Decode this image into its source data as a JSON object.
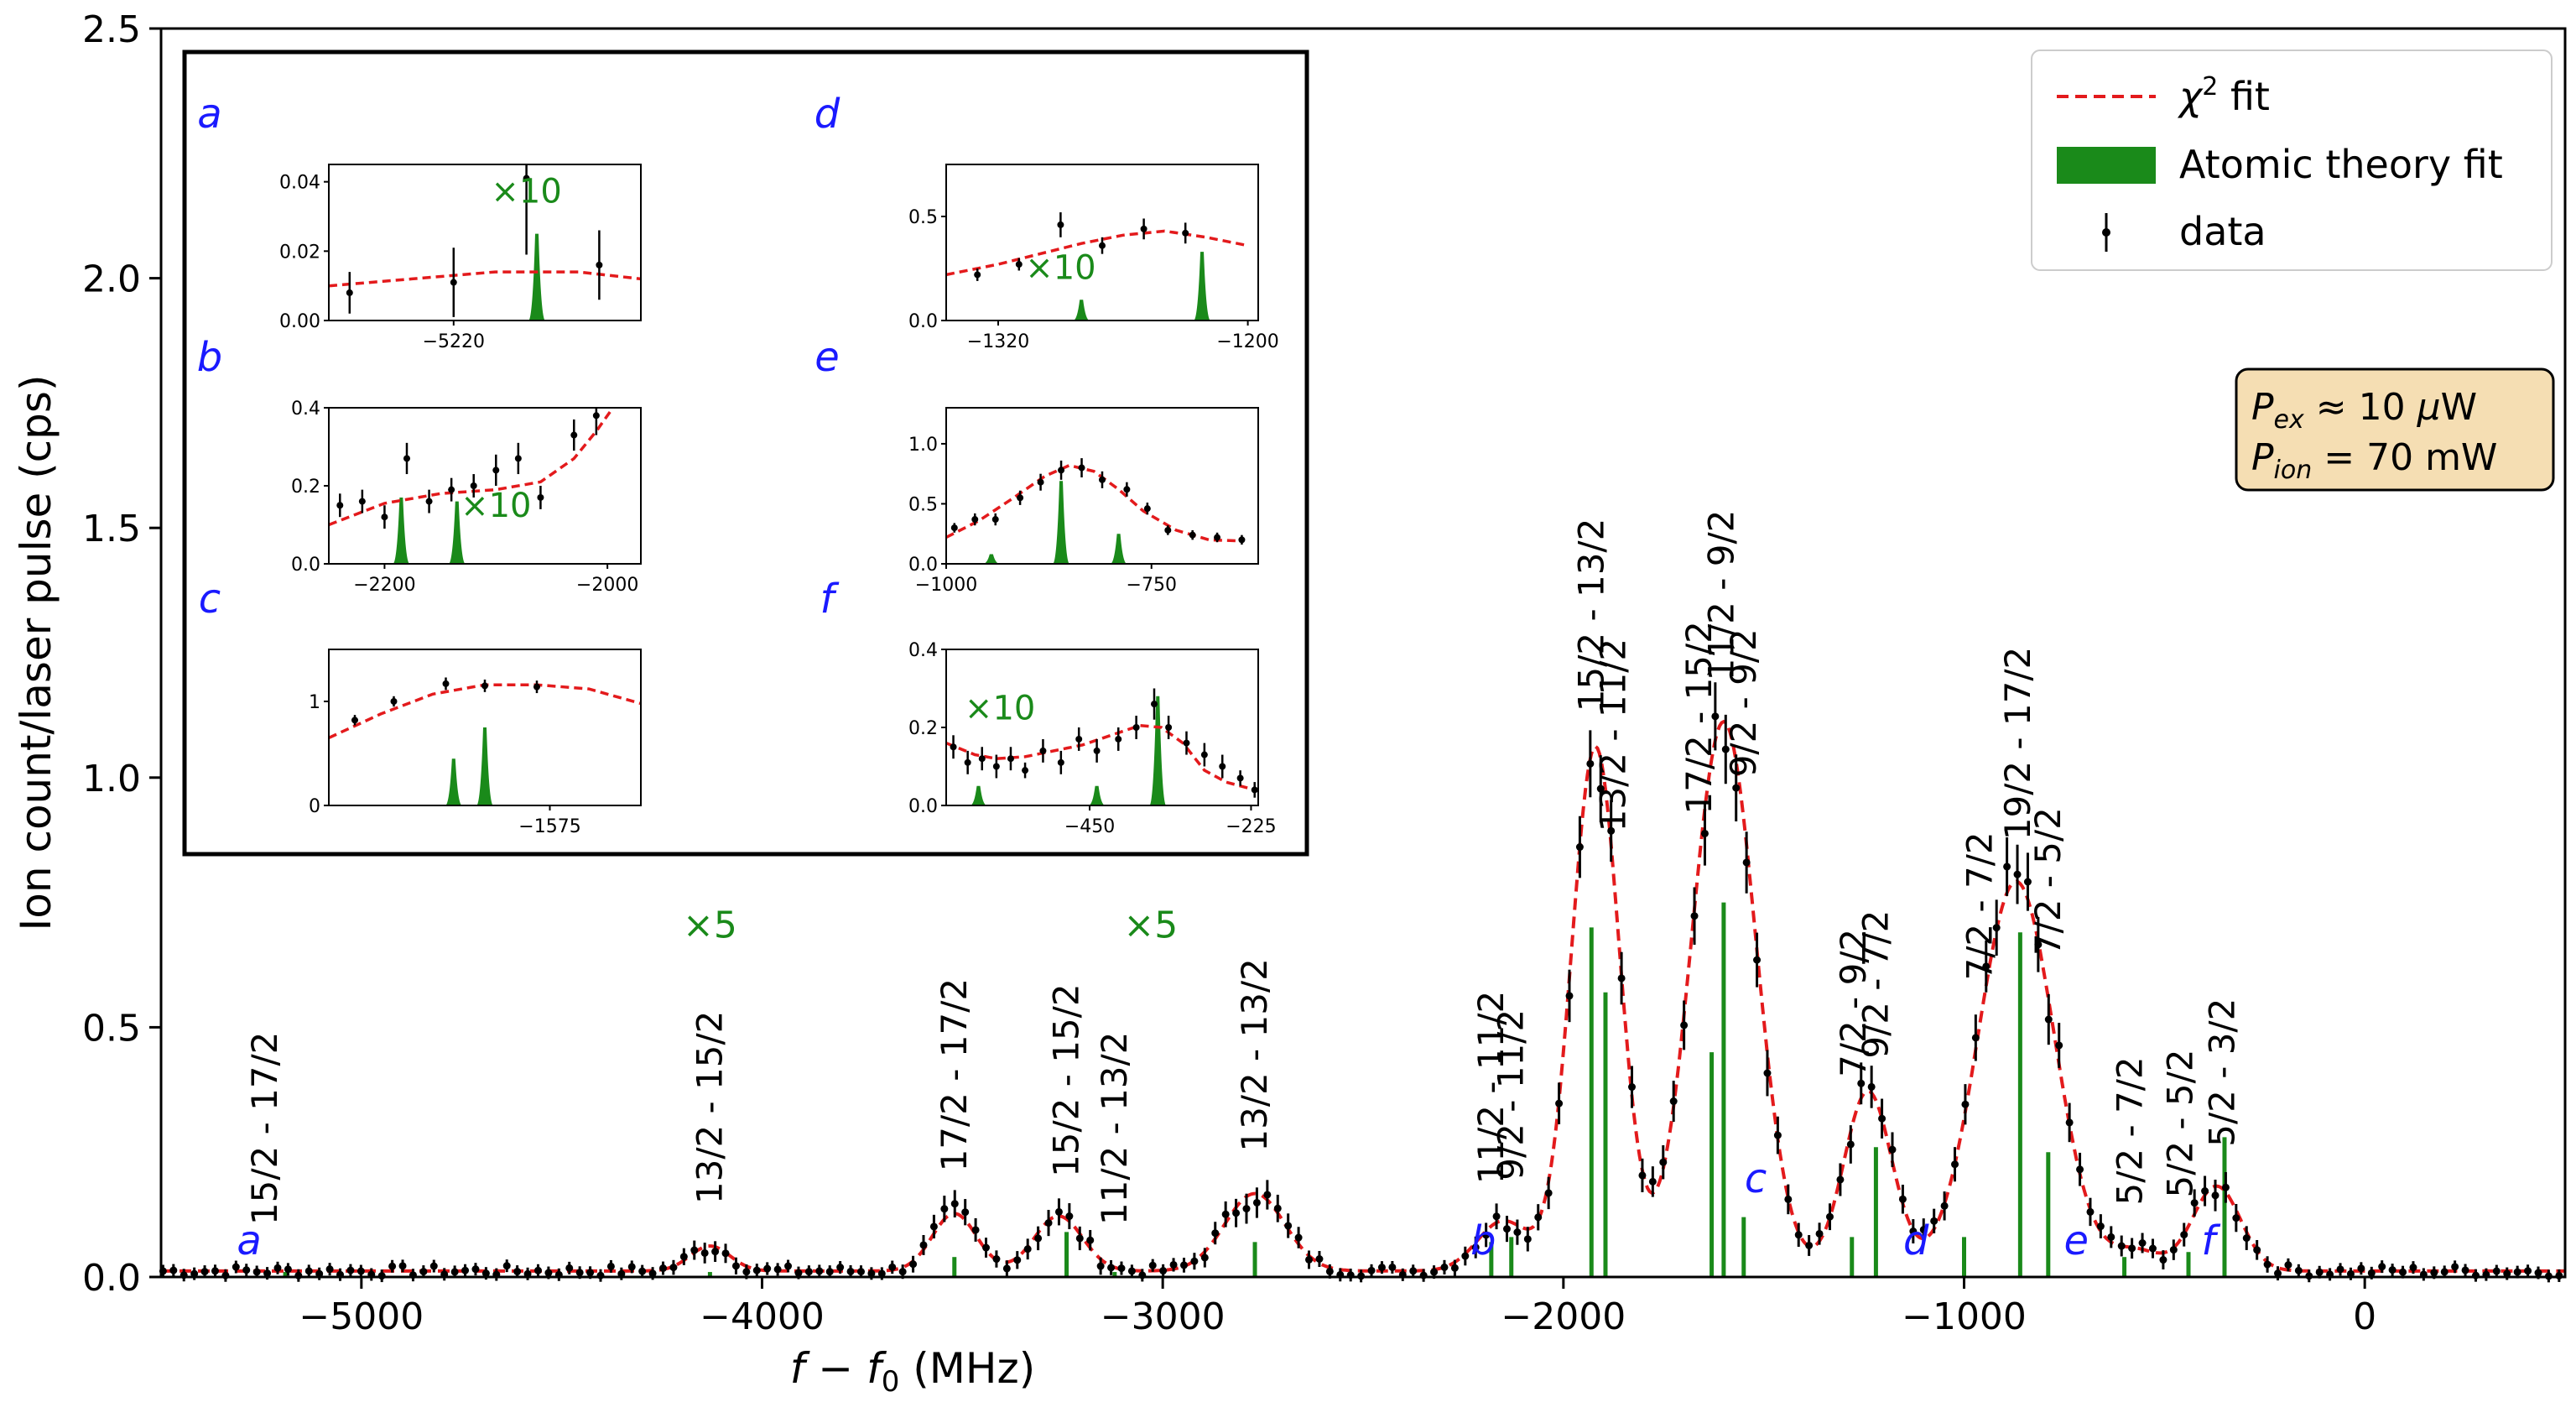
{
  "chart_data": {
    "type": "line",
    "xlabel": "f − f0 (MHz)",
    "ylabel": "Ion count/laser pulse (cps)",
    "xlim": [
      -5500,
      500
    ],
    "ylim": [
      0,
      2.5
    ],
    "xticks": [
      -5000,
      -4000,
      -3000,
      -2000,
      -1000,
      0
    ],
    "xtick_labels": [
      "−5000",
      "−4000",
      "−3000",
      "−2000",
      "−1000",
      "0"
    ],
    "yticks": [
      0.0,
      0.5,
      1.0,
      1.5,
      2.0,
      2.5
    ],
    "ytick_labels": [
      "0.0",
      "0.5",
      "1.0",
      "1.5",
      "2.0",
      "2.5"
    ],
    "legend": {
      "position": "top-right",
      "entries": [
        {
          "label": "χ² fit",
          "style": "dashed-line",
          "color": "#e31a1c"
        },
        {
          "label": "Atomic theory fit",
          "style": "bar",
          "color": "#1a8a1a"
        },
        {
          "label": "data",
          "style": "errorbar",
          "color": "#000000"
        }
      ]
    },
    "power_box": {
      "line1": "Pex ≈ 10 μW",
      "line2": "Pion = 70 mW"
    },
    "fit_peaks": [
      {
        "x": -4130,
        "amp": 0.05,
        "w": 50
      },
      {
        "x": -3520,
        "amp": 0.115,
        "w": 55
      },
      {
        "x": -3260,
        "amp": 0.11,
        "w": 60
      },
      {
        "x": -2770,
        "amp": 0.155,
        "w": 75
      },
      {
        "x": -2150,
        "amp": 0.1,
        "w": 65
      },
      {
        "x": -1920,
        "amp": 1.05,
        "w": 60
      },
      {
        "x": -1600,
        "amp": 1.1,
        "w": 80
      },
      {
        "x": -1240,
        "amp": 0.36,
        "w": 60
      },
      {
        "x": -870,
        "amp": 0.78,
        "w": 95
      },
      {
        "x": -570,
        "amp": 0.04,
        "w": 60
      },
      {
        "x": -370,
        "amp": 0.17,
        "w": 60
      }
    ],
    "theory_lines": [
      {
        "x": -5190,
        "h": 0.01
      },
      {
        "x": -4130,
        "h": 0.01
      },
      {
        "x": -3520,
        "h": 0.04
      },
      {
        "x": -3240,
        "h": 0.09
      },
      {
        "x": -3120,
        "h": 0.01
      },
      {
        "x": -2770,
        "h": 0.07
      },
      {
        "x": -2180,
        "h": 0.07
      },
      {
        "x": -2130,
        "h": 0.08
      },
      {
        "x": -1930,
        "h": 0.7
      },
      {
        "x": -1895,
        "h": 0.57
      },
      {
        "x": -1630,
        "h": 0.45
      },
      {
        "x": -1600,
        "h": 0.75
      },
      {
        "x": -1550,
        "h": 0.12
      },
      {
        "x": -1280,
        "h": 0.08
      },
      {
        "x": -1220,
        "h": 0.26
      },
      {
        "x": -1000,
        "h": 0.08
      },
      {
        "x": -860,
        "h": 0.69
      },
      {
        "x": -790,
        "h": 0.25
      },
      {
        "x": -600,
        "h": 0.04
      },
      {
        "x": -440,
        "h": 0.05
      },
      {
        "x": -350,
        "h": 0.28
      }
    ],
    "peak_labels": [
      {
        "x": -5240,
        "text": "15/2 - 17/2"
      },
      {
        "x": -4130,
        "text": "13/2 - 15/2"
      },
      {
        "x": -3520,
        "text": "17/2 - 17/2"
      },
      {
        "x": -3240,
        "text": "15/2 - 15/2"
      },
      {
        "x": -3120,
        "text": "11/2 - 13/2"
      },
      {
        "x": -2770,
        "text": "13/2 - 13/2"
      },
      {
        "x": -2180,
        "text": "11/2 - 11/2"
      },
      {
        "x": -2130,
        "text": "9/2 - 11/2"
      },
      {
        "x": -1930,
        "text": "15/2 - 13/2"
      },
      {
        "x": -1875,
        "text": "13/2 - 11/2"
      },
      {
        "x": -1660,
        "text": "17/2 - 15/2"
      },
      {
        "x": -1605,
        "text": "11/2 - 9/2"
      },
      {
        "x": -1550,
        "text": "9/2 - 9/2"
      },
      {
        "x": -1275,
        "text": "7/2 - 9/2"
      },
      {
        "x": -1220,
        "text": "9/2 - 7/2"
      },
      {
        "x": -960,
        "text": "7/2 - 7/2"
      },
      {
        "x": -865,
        "text": "19/2 - 17/2"
      },
      {
        "x": -790,
        "text": "7/2 - 5/2"
      },
      {
        "x": -585,
        "text": "5/2 - 7/2"
      },
      {
        "x": -460,
        "text": "5/2 - 5/2"
      },
      {
        "x": -355,
        "text": "5/2 - 3/2"
      }
    ],
    "multipliers": [
      {
        "text": "×5",
        "x": -4130,
        "y": 0.68
      },
      {
        "text": "×5",
        "x": -3030,
        "y": 0.68
      }
    ],
    "region_markers": [
      {
        "text": "a",
        "x": -5280,
        "y": 0.045
      },
      {
        "text": "b",
        "x": -2200,
        "y": 0.045
      },
      {
        "text": "c",
        "x": -1520,
        "y": 0.17
      },
      {
        "text": "d",
        "x": -1120,
        "y": 0.045
      },
      {
        "text": "e",
        "x": -720,
        "y": 0.045
      },
      {
        "text": "f",
        "x": -390,
        "y": 0.045
      }
    ],
    "insets": [
      {
        "letter": "a",
        "xlim": [
          -5280,
          -5130
        ],
        "ylim": [
          0,
          0.045
        ],
        "yticks": [
          "0.00",
          "0.02",
          "0.04"
        ],
        "ytick_vals": [
          0,
          0.02,
          0.04
        ],
        "xtick_vals": [
          -5220
        ],
        "xticks": [
          "−5220"
        ],
        "mult": "×10",
        "mult_x": -5185,
        "mult_y": 0.034,
        "fit": [
          [
            -5280,
            0.01
          ],
          [
            -5240,
            0.012
          ],
          [
            -5200,
            0.014
          ],
          [
            -5160,
            0.014
          ],
          [
            -5130,
            0.012
          ]
        ],
        "data": [
          [
            -5270,
            0.008,
            0.006
          ],
          [
            -5220,
            0.011,
            0.01
          ],
          [
            -5185,
            0.041,
            0.022
          ],
          [
            -5150,
            0.016,
            0.01
          ]
        ],
        "lines": [
          [
            -5180,
            0.025
          ]
        ]
      },
      {
        "letter": "b",
        "xlim": [
          -2250,
          -1970
        ],
        "ylim": [
          0,
          0.4
        ],
        "yticks": [
          "0.0",
          "0.2",
          "0.4"
        ],
        "ytick_vals": [
          0,
          0.2,
          0.4
        ],
        "xtick_vals": [
          -2200,
          -2000
        ],
        "xticks": [
          "−2200",
          "−2000"
        ],
        "mult": "×10",
        "mult_x": -2100,
        "mult_y": 0.12,
        "fit": [
          [
            -2250,
            0.1
          ],
          [
            -2200,
            0.155
          ],
          [
            -2150,
            0.18
          ],
          [
            -2100,
            0.19
          ],
          [
            -2060,
            0.21
          ],
          [
            -2030,
            0.27
          ],
          [
            -2010,
            0.34
          ],
          [
            -1990,
            0.42
          ]
        ],
        "data": [
          [
            -2240,
            0.15,
            0.03
          ],
          [
            -2220,
            0.16,
            0.03
          ],
          [
            -2200,
            0.12,
            0.03
          ],
          [
            -2180,
            0.27,
            0.04
          ],
          [
            -2160,
            0.16,
            0.03
          ],
          [
            -2140,
            0.19,
            0.03
          ],
          [
            -2120,
            0.2,
            0.03
          ],
          [
            -2100,
            0.24,
            0.04
          ],
          [
            -2080,
            0.27,
            0.04
          ],
          [
            -2060,
            0.17,
            0.03
          ],
          [
            -2030,
            0.33,
            0.04
          ],
          [
            -2010,
            0.38,
            0.05
          ]
        ],
        "lines": [
          [
            -2185,
            0.17
          ],
          [
            -2135,
            0.16
          ]
        ]
      },
      {
        "letter": "c",
        "xlim": [
          -1660,
          -1540
        ],
        "ylim": [
          0,
          1.5
        ],
        "yticks": [
          "0",
          "1"
        ],
        "ytick_vals": [
          0,
          1
        ],
        "xtick_vals": [
          -1575
        ],
        "xticks": [
          "−1575"
        ],
        "mult": "",
        "mult_x": 0,
        "mult_y": 0,
        "fit": [
          [
            -1660,
            0.65
          ],
          [
            -1640,
            0.88
          ],
          [
            -1620,
            1.07
          ],
          [
            -1600,
            1.16
          ],
          [
            -1580,
            1.16
          ],
          [
            -1560,
            1.12
          ],
          [
            -1540,
            0.98
          ]
        ],
        "data": [
          [
            -1650,
            0.82,
            0.05
          ],
          [
            -1635,
            1.0,
            0.05
          ],
          [
            -1615,
            1.17,
            0.06
          ],
          [
            -1600,
            1.15,
            0.06
          ],
          [
            -1580,
            1.14,
            0.06
          ]
        ],
        "lines": [
          [
            -1612,
            0.45
          ],
          [
            -1600,
            0.75
          ]
        ]
      },
      {
        "letter": "d",
        "xlim": [
          -1345,
          -1195
        ],
        "ylim": [
          0,
          0.75
        ],
        "yticks": [
          "0.0",
          "0.5"
        ],
        "ytick_vals": [
          0,
          0.5
        ],
        "xtick_vals": [
          -1320,
          -1200
        ],
        "xticks": [
          "−1320",
          "−1200"
        ],
        "mult": "×10",
        "mult_x": -1290,
        "mult_y": 0.2,
        "fit": [
          [
            -1345,
            0.22
          ],
          [
            -1320,
            0.27
          ],
          [
            -1300,
            0.32
          ],
          [
            -1280,
            0.37
          ],
          [
            -1260,
            0.41
          ],
          [
            -1240,
            0.43
          ],
          [
            -1220,
            0.4
          ],
          [
            -1200,
            0.36
          ]
        ],
        "data": [
          [
            -1330,
            0.22,
            0.03
          ],
          [
            -1310,
            0.27,
            0.03
          ],
          [
            -1290,
            0.46,
            0.06
          ],
          [
            -1270,
            0.36,
            0.04
          ],
          [
            -1250,
            0.44,
            0.05
          ],
          [
            -1230,
            0.42,
            0.05
          ]
        ],
        "lines": [
          [
            -1280,
            0.1
          ],
          [
            -1222,
            0.33
          ]
        ]
      },
      {
        "letter": "e",
        "xlim": [
          -1000,
          -620
        ],
        "ylim": [
          0,
          1.3
        ],
        "yticks": [
          "0.0",
          "0.5",
          "1.0"
        ],
        "ytick_vals": [
          0,
          0.5,
          1.0
        ],
        "xtick_vals": [
          -1000,
          -750
        ],
        "xticks": [
          "−1000",
          "−750"
        ],
        "mult": "",
        "mult_x": 0,
        "mult_y": 0,
        "fit": [
          [
            -1000,
            0.22
          ],
          [
            -960,
            0.36
          ],
          [
            -920,
            0.54
          ],
          [
            -880,
            0.73
          ],
          [
            -850,
            0.82
          ],
          [
            -820,
            0.77
          ],
          [
            -790,
            0.62
          ],
          [
            -760,
            0.44
          ],
          [
            -720,
            0.28
          ],
          [
            -680,
            0.2
          ],
          [
            -640,
            0.19
          ]
        ],
        "data": [
          [
            -990,
            0.3,
            0.04
          ],
          [
            -965,
            0.37,
            0.05
          ],
          [
            -940,
            0.37,
            0.05
          ],
          [
            -910,
            0.55,
            0.06
          ],
          [
            -885,
            0.68,
            0.07
          ],
          [
            -860,
            0.78,
            0.08
          ],
          [
            -835,
            0.8,
            0.08
          ],
          [
            -810,
            0.7,
            0.07
          ],
          [
            -780,
            0.62,
            0.06
          ],
          [
            -755,
            0.46,
            0.05
          ],
          [
            -730,
            0.28,
            0.04
          ],
          [
            -700,
            0.24,
            0.04
          ],
          [
            -670,
            0.22,
            0.04
          ],
          [
            -640,
            0.2,
            0.04
          ]
        ],
        "lines": [
          [
            -945,
            0.08
          ],
          [
            -860,
            0.69
          ],
          [
            -790,
            0.25
          ]
        ]
      },
      {
        "letter": "f",
        "xlim": [
          -650,
          -215
        ],
        "ylim": [
          0,
          0.4
        ],
        "yticks": [
          "0.0",
          "0.2",
          "0.4"
        ],
        "ytick_vals": [
          0,
          0.2,
          0.4
        ],
        "xtick_vals": [
          -450,
          -225
        ],
        "xticks": [
          "−450",
          "−225"
        ],
        "mult": "×10",
        "mult_x": -575,
        "mult_y": 0.22,
        "fit": [
          [
            -650,
            0.16
          ],
          [
            -610,
            0.13
          ],
          [
            -580,
            0.12
          ],
          [
            -540,
            0.125
          ],
          [
            -500,
            0.14
          ],
          [
            -460,
            0.155
          ],
          [
            -420,
            0.18
          ],
          [
            -380,
            0.205
          ],
          [
            -350,
            0.2
          ],
          [
            -320,
            0.16
          ],
          [
            -290,
            0.09
          ],
          [
            -260,
            0.06
          ],
          [
            -220,
            0.04
          ]
        ],
        "data": [
          [
            -640,
            0.15,
            0.03
          ],
          [
            -620,
            0.11,
            0.03
          ],
          [
            -600,
            0.12,
            0.03
          ],
          [
            -580,
            0.1,
            0.03
          ],
          [
            -560,
            0.12,
            0.03
          ],
          [
            -540,
            0.09,
            0.02
          ],
          [
            -515,
            0.14,
            0.03
          ],
          [
            -490,
            0.11,
            0.03
          ],
          [
            -465,
            0.17,
            0.03
          ],
          [
            -440,
            0.14,
            0.03
          ],
          [
            -410,
            0.17,
            0.03
          ],
          [
            -385,
            0.2,
            0.03
          ],
          [
            -360,
            0.26,
            0.04
          ],
          [
            -340,
            0.2,
            0.03
          ],
          [
            -315,
            0.16,
            0.03
          ],
          [
            -290,
            0.13,
            0.03
          ],
          [
            -265,
            0.1,
            0.03
          ],
          [
            -240,
            0.07,
            0.02
          ],
          [
            -220,
            0.04,
            0.02
          ]
        ],
        "lines": [
          [
            -605,
            0.05
          ],
          [
            -440,
            0.05
          ],
          [
            -355,
            0.28
          ]
        ]
      }
    ]
  }
}
